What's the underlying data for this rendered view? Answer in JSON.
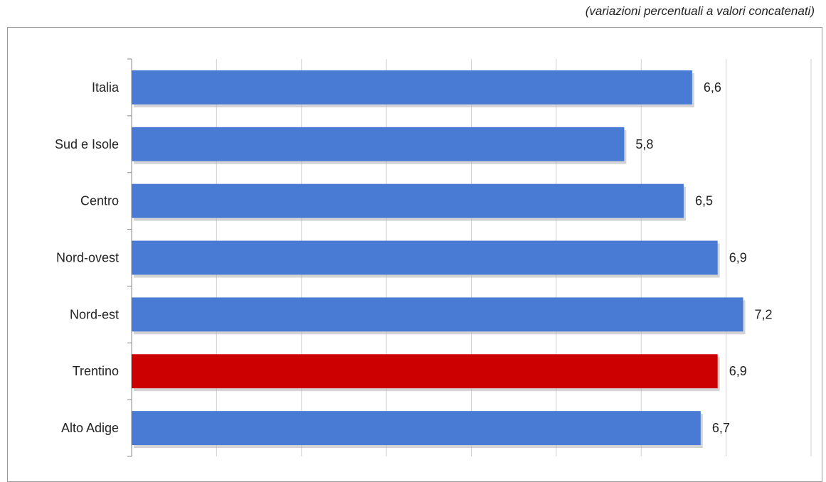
{
  "subtitle": "(variazioni percentuali a valori concatenati)",
  "chart_data": {
    "type": "bar",
    "orientation": "horizontal",
    "subtitle": "(variazioni percentuali a valori concatenati)",
    "categories": [
      "Italia",
      "Sud e Isole",
      "Centro",
      "Nord-ovest",
      "Nord-est",
      "Trentino",
      "Alto Adige"
    ],
    "values": [
      6.6,
      5.8,
      6.5,
      6.9,
      7.2,
      6.9,
      6.7
    ],
    "value_labels": [
      "6,6",
      "5,8",
      "6,5",
      "6,9",
      "7,2",
      "6,9",
      "6,7"
    ],
    "highlight": "Trentino",
    "colors": {
      "default": "#4a7bd4",
      "highlight": "#cc0000",
      "gridline": "#d0d0d0",
      "axis": "#888888"
    },
    "xlim": [
      0,
      8
    ],
    "grid": true,
    "legend": "none"
  }
}
